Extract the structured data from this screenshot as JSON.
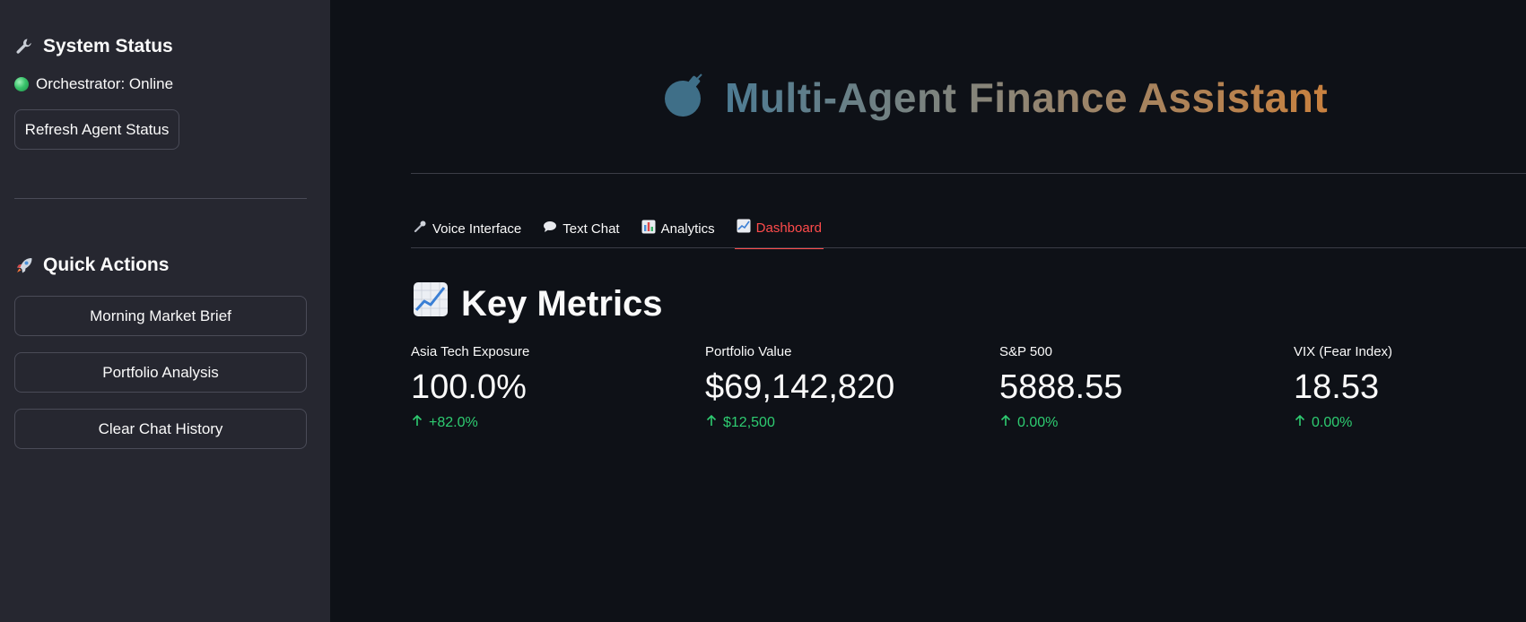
{
  "sidebar": {
    "system_status": {
      "heading": "System Status",
      "icon": "wrench-icon",
      "orchestrator_status": "Orchestrator: Online",
      "status_color": "#39c46b",
      "refresh_label": "Refresh Agent Status"
    },
    "quick_actions": {
      "heading": "Quick Actions",
      "icon": "rocket-icon",
      "buttons": [
        "Morning Market Brief",
        "Portfolio Analysis",
        "Clear Chat History"
      ]
    }
  },
  "header": {
    "title": "Multi-Agent Finance Assistant",
    "icon": "bomb-icon"
  },
  "tabs": [
    {
      "label": "Voice Interface",
      "icon": "microphone-icon"
    },
    {
      "label": "Text Chat",
      "icon": "speech-bubble-icon"
    },
    {
      "label": "Analytics",
      "icon": "bar-chart-icon"
    },
    {
      "label": "Dashboard",
      "icon": "line-chart-icon",
      "active": true
    }
  ],
  "key_metrics": {
    "heading": "Key Metrics",
    "icon": "chart-increasing-icon",
    "items": [
      {
        "label": "Asia Tech Exposure",
        "value": "100.0%",
        "delta": "+82.0%"
      },
      {
        "label": "Portfolio Value",
        "value": "$69,142,820",
        "delta": "$12,500"
      },
      {
        "label": "S&P 500",
        "value": "5888.55",
        "delta": "0.00%"
      },
      {
        "label": "VIX (Fear Index)",
        "value": "18.53",
        "delta": "0.00%"
      }
    ]
  },
  "colors": {
    "accent": "#ff4b4b",
    "positive": "#2ecc71",
    "background": "#0e1117",
    "sidebar": "#262730"
  }
}
